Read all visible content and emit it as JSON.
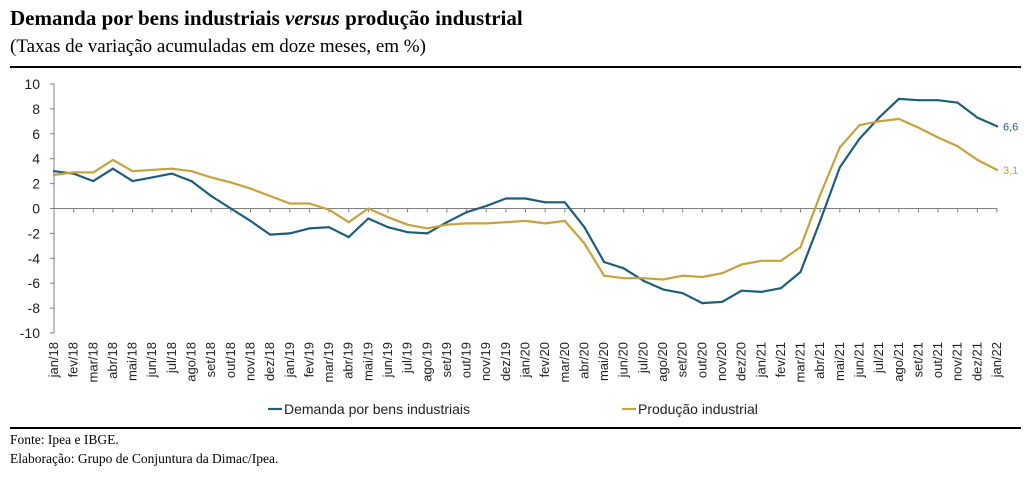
{
  "header": {
    "title_part1": "Demanda por bens industriais ",
    "title_italic": "versus",
    "title_part2": " produção industrial",
    "subtitle": "(Taxas de variação acumuladas em doze meses, em %)"
  },
  "footer": {
    "source": "Fonte: Ipea e IBGE.",
    "credit": "Elaboração: Grupo de Conjuntura da Dimac/Ipea."
  },
  "chart_data": {
    "type": "line",
    "title": "Demanda por bens industriais versus produção industrial",
    "subtitle": "(Taxas de variação acumuladas em doze meses, em %)",
    "xlabel": "",
    "ylabel": "",
    "ylim": [
      -10,
      10
    ],
    "yticks": [
      10,
      8,
      6,
      4,
      2,
      0,
      -2,
      -4,
      -6,
      -8,
      -10
    ],
    "grid": false,
    "legend_position": "bottom",
    "x": [
      "jan/18",
      "fev/18",
      "mar/18",
      "abr/18",
      "mai/18",
      "jun/18",
      "jul/18",
      "ago/18",
      "set/18",
      "out/18",
      "nov/18",
      "dez/18",
      "jan/19",
      "fev/19",
      "mar/19",
      "abr/19",
      "mai/19",
      "jun/19",
      "jul/19",
      "ago/19",
      "set/19",
      "out/19",
      "nov/19",
      "dez/19",
      "jan/20",
      "fev/20",
      "mar/20",
      "abr/20",
      "mai/20",
      "jun/20",
      "jul/20",
      "ago/20",
      "set/20",
      "out/20",
      "nov/20",
      "dez/20",
      "jan/21",
      "fev/21",
      "mar/21",
      "abr/21",
      "mai/21",
      "jun/21",
      "jul/21",
      "ago/21",
      "set/21",
      "out/21",
      "nov/21",
      "dez/21",
      "jan/22"
    ],
    "series": [
      {
        "name": "Demanda por bens industriais",
        "color": "#1d5f7a",
        "end_label": "6,6",
        "values": [
          3.0,
          2.8,
          2.2,
          3.2,
          2.2,
          2.5,
          2.8,
          2.2,
          1.0,
          0.0,
          -1.0,
          -2.1,
          -2.0,
          -1.6,
          -1.5,
          -2.3,
          -0.8,
          -1.5,
          -1.9,
          -2.0,
          -1.1,
          -0.3,
          0.2,
          0.8,
          0.8,
          0.5,
          0.5,
          -1.5,
          -4.3,
          -4.8,
          -5.8,
          -6.5,
          -6.8,
          -7.6,
          -7.5,
          -6.6,
          -6.7,
          -6.4,
          -5.1,
          -1.0,
          3.3,
          5.6,
          7.3,
          8.8,
          8.7,
          8.7,
          8.5,
          7.3,
          6.6
        ]
      },
      {
        "name": "Produção industrial",
        "color": "#c9a23c",
        "end_label": "3,1",
        "values": [
          2.7,
          2.9,
          2.9,
          3.9,
          3.0,
          3.1,
          3.2,
          3.0,
          2.5,
          2.1,
          1.6,
          1.0,
          0.4,
          0.4,
          -0.1,
          -1.1,
          0.0,
          -0.7,
          -1.3,
          -1.6,
          -1.3,
          -1.2,
          -1.2,
          -1.1,
          -1.0,
          -1.2,
          -1.0,
          -2.8,
          -5.4,
          -5.6,
          -5.6,
          -5.7,
          -5.4,
          -5.5,
          -5.2,
          -4.5,
          -4.2,
          -4.2,
          -3.1,
          1.1,
          4.9,
          6.7,
          7.0,
          7.2,
          6.5,
          5.7,
          5.0,
          3.9,
          3.1
        ]
      }
    ]
  }
}
